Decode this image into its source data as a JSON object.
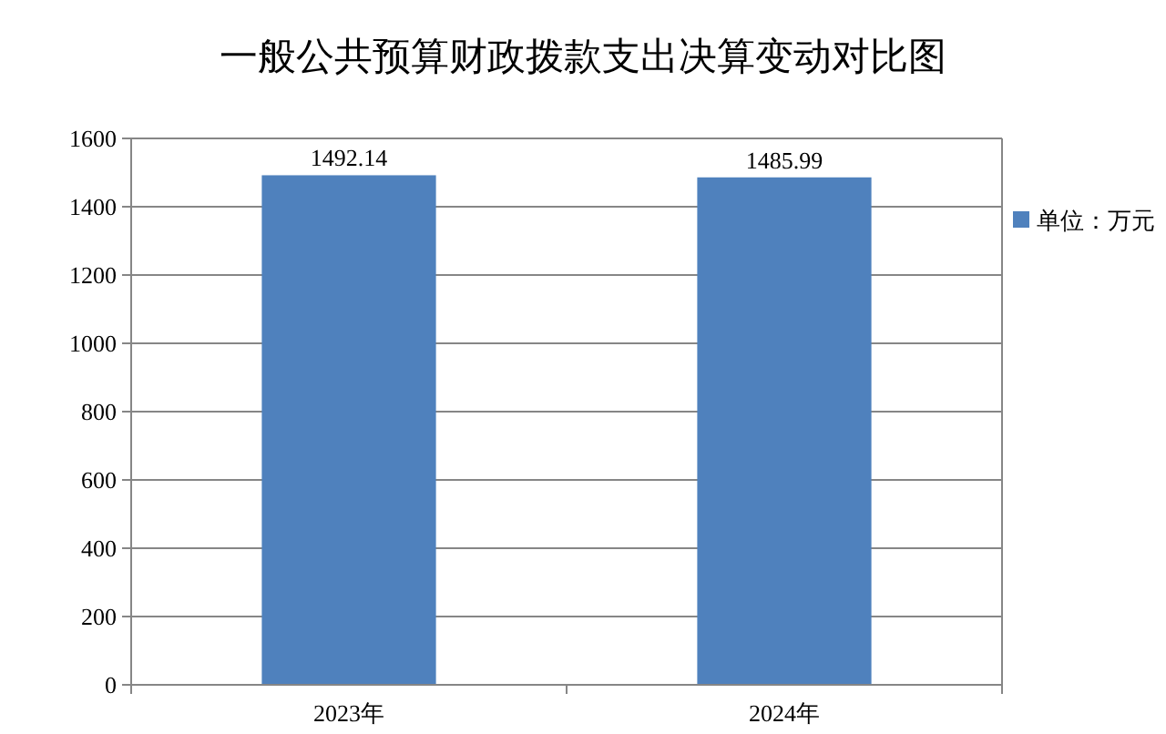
{
  "chart_data": {
    "type": "bar",
    "title": "一般公共预算财政拨款支出决算变动对比图",
    "categories": [
      "2023年",
      "2024年"
    ],
    "series": [
      {
        "name": "单位：万元",
        "color": "#4f81bd",
        "values": [
          1492.14,
          1485.99
        ]
      }
    ],
    "ylim": [
      0,
      1600
    ],
    "yticks": [
      0,
      200,
      400,
      600,
      800,
      1000,
      1200,
      1400,
      1600
    ],
    "grid": "y",
    "legend": "right",
    "data_labels": true
  }
}
